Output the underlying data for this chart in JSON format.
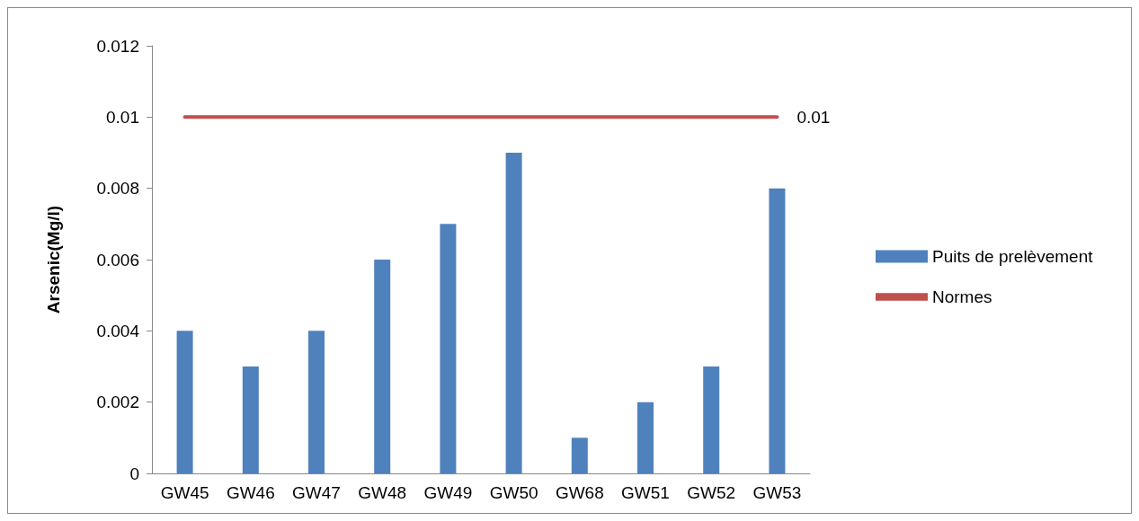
{
  "chart_data": {
    "type": "bar",
    "ylabel": "Arsenic(Mg/l)",
    "categories": [
      "GW45",
      "GW46",
      "GW47",
      "GW48",
      "GW49",
      "GW50",
      "GW68",
      "GW51",
      "GW52",
      "GW53"
    ],
    "series": [
      {
        "name": "Puits de prelèvement",
        "color": "#4f81bd",
        "values": [
          0.004,
          0.003,
          0.004,
          0.006,
          0.007,
          0.009,
          0.001,
          0.002,
          0.003,
          0.008
        ]
      },
      {
        "name": "Normes",
        "type": "line",
        "color": "#c0504d",
        "values": [
          0.01,
          0.01,
          0.01,
          0.01,
          0.01,
          0.01,
          0.01,
          0.01,
          0.01,
          0.01
        ],
        "value_labels": [
          null,
          null,
          null,
          null,
          null,
          null,
          null,
          null,
          null,
          "0.01"
        ]
      }
    ],
    "ylim": [
      0,
      0.012
    ],
    "yticks": [
      0,
      0.002,
      0.004,
      0.006,
      0.008,
      0.01,
      0.012
    ],
    "grid": false,
    "legend": "right",
    "marker": "none"
  }
}
